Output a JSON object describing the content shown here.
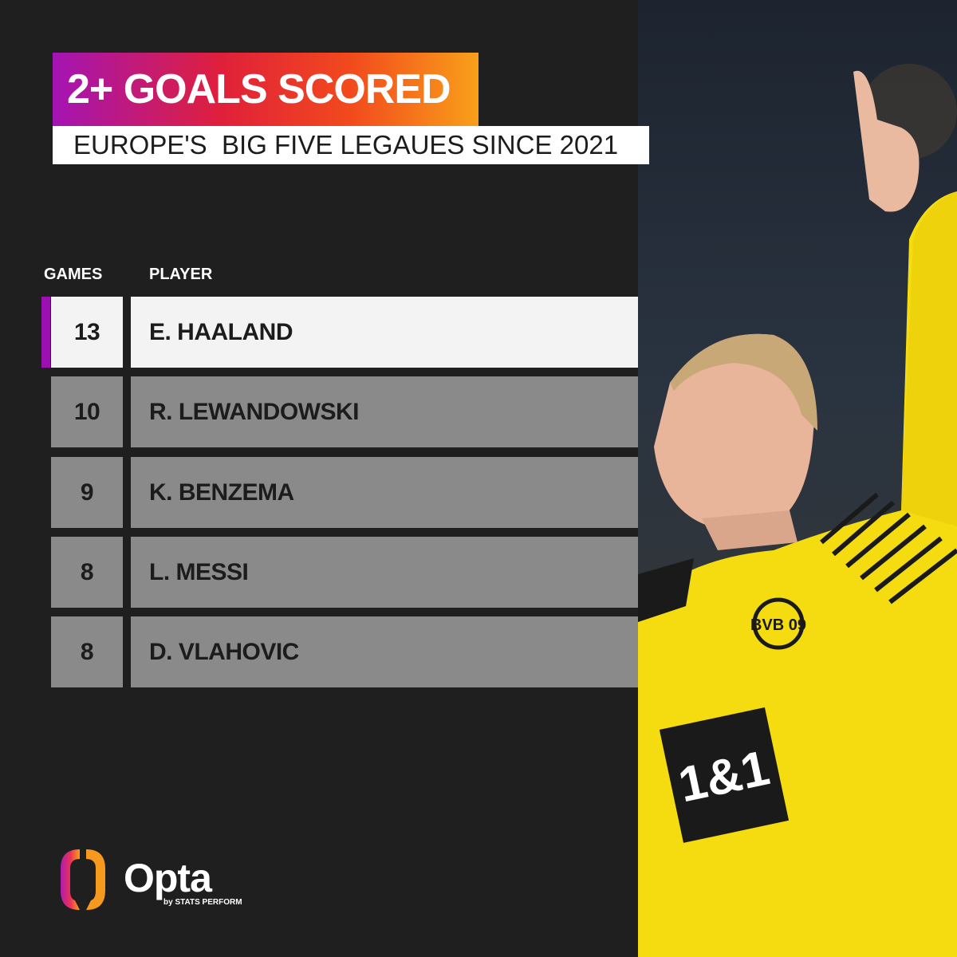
{
  "header": {
    "title": "2+ GOALS SCORED",
    "subtitle": "EUROPE'S  BIG FIVE LEGAUES SINCE 2021"
  },
  "chart_data": {
    "type": "table",
    "columns": [
      "GAMES",
      "PLAYER"
    ],
    "rows": [
      {
        "games": "13",
        "player": "E. HAALAND"
      },
      {
        "games": "10",
        "player": "R. LEWANDOWSKI"
      },
      {
        "games": "9",
        "player": "K. BENZEMA"
      },
      {
        "games": "8",
        "player": "L. MESSI"
      },
      {
        "games": "8",
        "player": "D. VLAHOVIC"
      }
    ],
    "highlight_row": 0,
    "colors": {
      "highlight": "#f3f3f3",
      "row": "#8a8a8a",
      "accent": "#9a10b0",
      "background": "#1f1f1f"
    }
  },
  "brand": {
    "name": "Opta",
    "tagline": "by STATS PERFORM"
  },
  "photo": {
    "sponsor": "1&1",
    "badge": "BVB 09"
  }
}
